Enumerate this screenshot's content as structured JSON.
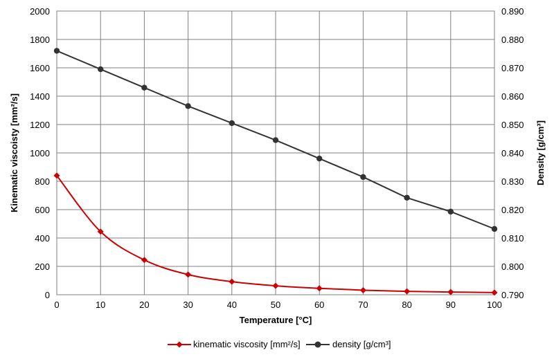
{
  "chart_data": {
    "type": "line",
    "x": [
      0,
      10,
      20,
      30,
      40,
      50,
      60,
      70,
      80,
      90,
      100
    ],
    "xlabel": "Temperature  [°C]",
    "xlim": [
      0,
      100
    ],
    "x_ticks": [
      "0",
      "10",
      "20",
      "30",
      "40",
      "50",
      "60",
      "70",
      "80",
      "90",
      "100"
    ],
    "grid": true,
    "legend_position": "bottom",
    "y_left": {
      "label": "Kinematic viscoisty  [mm²/s]",
      "lim": [
        0,
        2000
      ],
      "ticks": [
        "0",
        "200",
        "400",
        "600",
        "800",
        "1000",
        "1200",
        "1400",
        "1600",
        "1800",
        "2000"
      ]
    },
    "y_right": {
      "label": "Density  [g/cm³]",
      "lim": [
        0.79,
        0.89
      ],
      "ticks": [
        "0.790",
        "0.800",
        "0.810",
        "0.820",
        "0.830",
        "0.840",
        "0.850",
        "0.860",
        "0.870",
        "0.880",
        "0.890"
      ]
    },
    "series": [
      {
        "name": "kinematic viscosity [mm²/s]",
        "axis": "left",
        "color": "#cc0000",
        "marker": "diamond",
        "smooth": true,
        "values": [
          840,
          445,
          245,
          142,
          92,
          63,
          45,
          32,
          24,
          19,
          15
        ]
      },
      {
        "name": "density [g/cm³]",
        "axis": "right",
        "color": "#333333",
        "marker": "circle",
        "smooth": false,
        "values": [
          0.876,
          0.8695,
          0.863,
          0.8565,
          0.8505,
          0.8445,
          0.838,
          0.8315,
          0.8242,
          0.8193,
          0.8132
        ]
      }
    ]
  }
}
